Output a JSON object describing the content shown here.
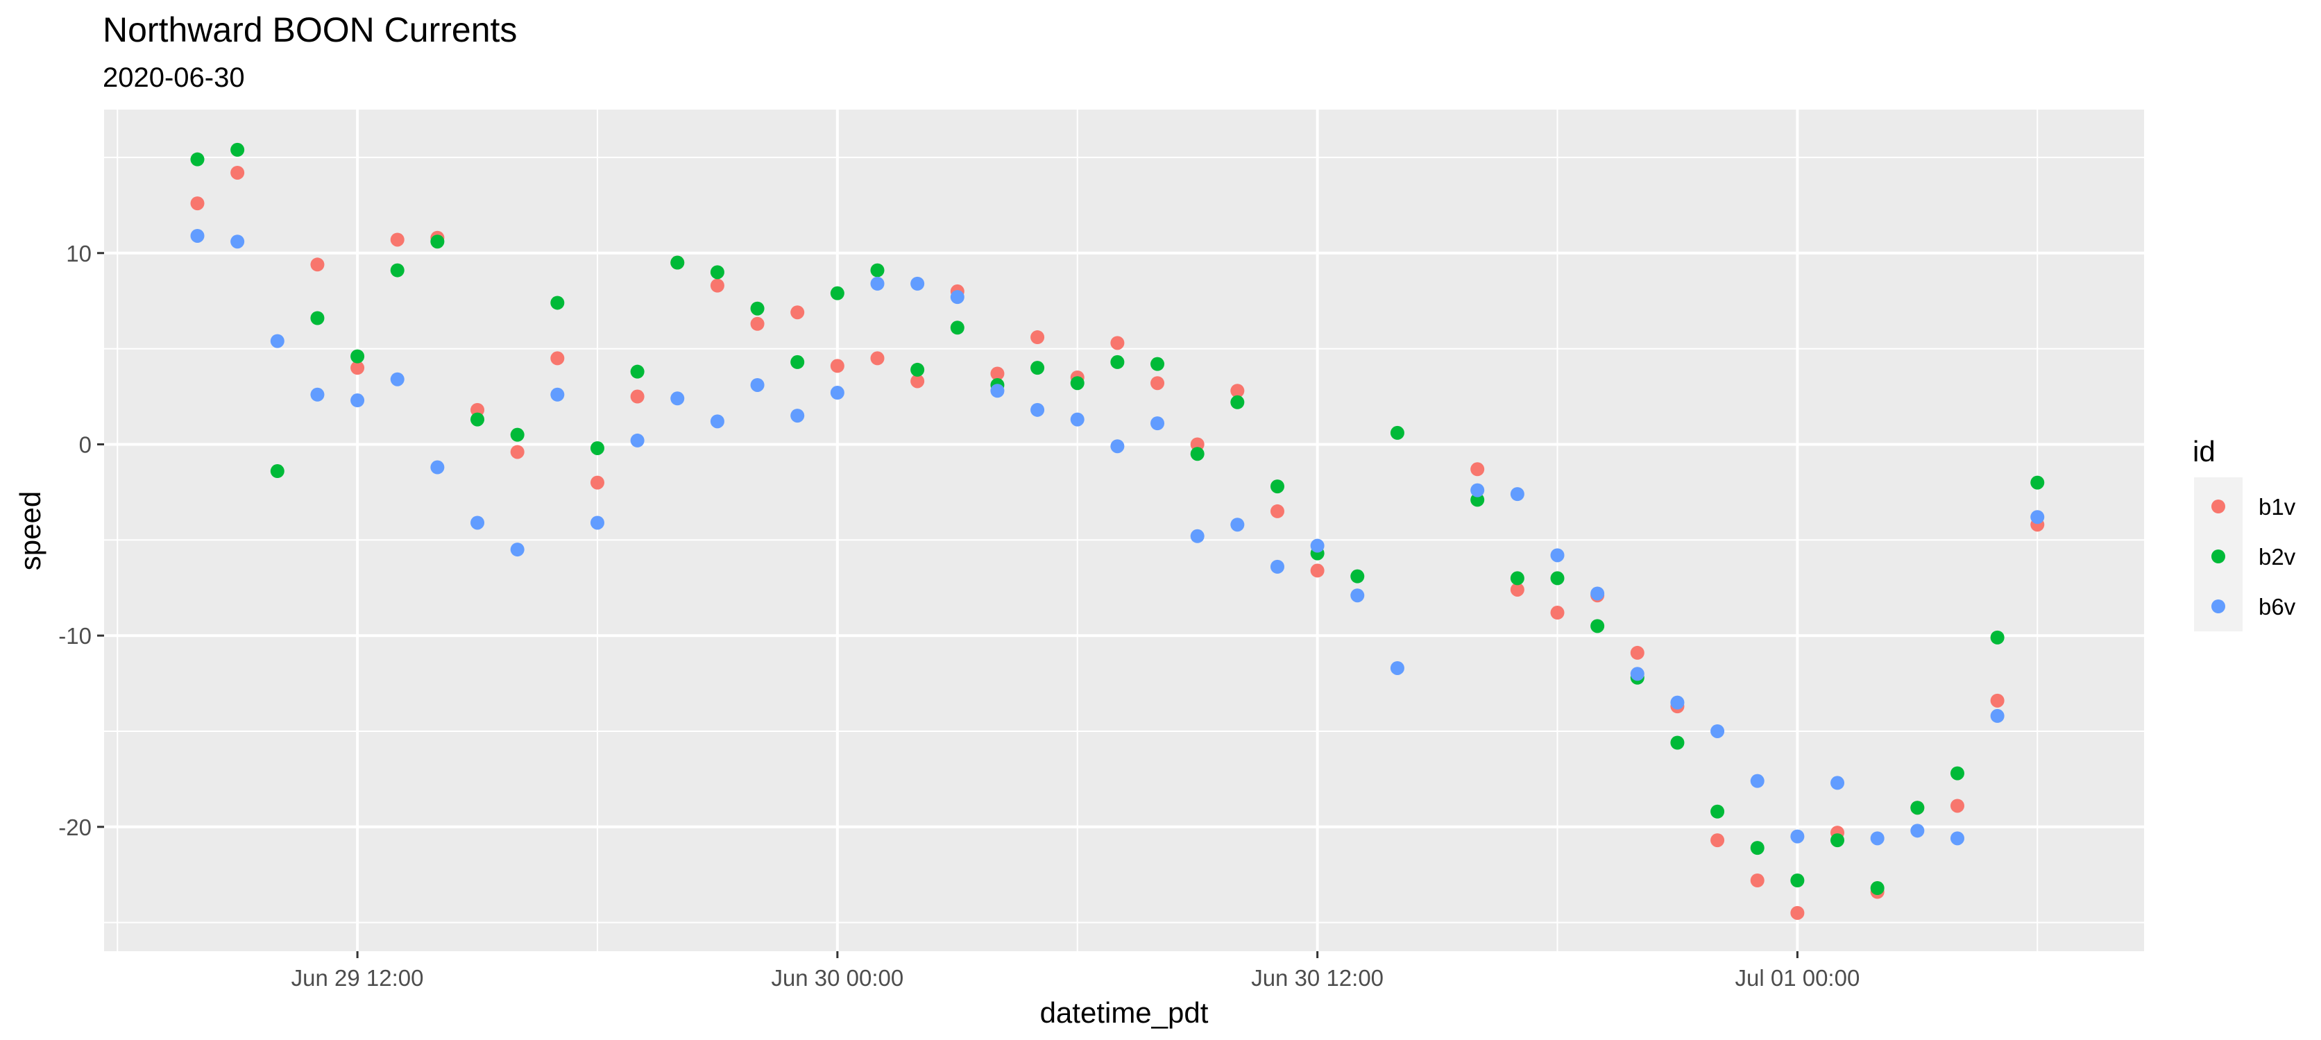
{
  "chart_data": {
    "type": "scatter",
    "title": "Northward BOON Currents",
    "subtitle": "2020-06-30",
    "xlabel": "datetime_pdt",
    "ylabel": "speed",
    "x_ticks": [
      "Jun 29 12:00",
      "Jun 30 00:00",
      "Jun 30 12:00",
      "Jul 01 00:00"
    ],
    "x_tick_times": [
      "2020-06-29 12:00",
      "2020-06-30 00:00",
      "2020-06-30 12:00",
      "2020-07-01 00:00"
    ],
    "y_ticks": [
      10,
      0,
      -10,
      -20
    ],
    "xlim": [
      "2020-06-29 05:40",
      "2020-07-01 08:40"
    ],
    "ylim": [
      -26.5,
      17.5
    ],
    "grid": true,
    "legend": {
      "title": "id",
      "position": "right"
    },
    "colors": {
      "b1v": "#F8766D",
      "b2v": "#00BA38",
      "b6v": "#619CFF"
    },
    "series": [
      {
        "name": "b1v",
        "points": [
          [
            "2020-06-29 08:00",
            12.6
          ],
          [
            "2020-06-29 09:00",
            14.2
          ],
          [
            "2020-06-29 11:00",
            9.4
          ],
          [
            "2020-06-29 12:00",
            4.0
          ],
          [
            "2020-06-29 13:00",
            10.7
          ],
          [
            "2020-06-29 14:00",
            10.8
          ],
          [
            "2020-06-29 15:00",
            1.8
          ],
          [
            "2020-06-29 16:00",
            -0.4
          ],
          [
            "2020-06-29 17:00",
            4.5
          ],
          [
            "2020-06-29 18:00",
            -2.0
          ],
          [
            "2020-06-29 19:00",
            2.5
          ],
          [
            "2020-06-29 20:00",
            9.5
          ],
          [
            "2020-06-29 21:00",
            8.3
          ],
          [
            "2020-06-29 22:00",
            6.3
          ],
          [
            "2020-06-29 23:00",
            6.9
          ],
          [
            "2020-06-30 00:00",
            4.1
          ],
          [
            "2020-06-30 01:00",
            4.5
          ],
          [
            "2020-06-30 02:00",
            3.3
          ],
          [
            "2020-06-30 03:00",
            8.0
          ],
          [
            "2020-06-30 04:00",
            3.7
          ],
          [
            "2020-06-30 05:00",
            5.6
          ],
          [
            "2020-06-30 06:00",
            3.5
          ],
          [
            "2020-06-30 07:00",
            5.3
          ],
          [
            "2020-06-30 08:00",
            3.2
          ],
          [
            "2020-06-30 09:00",
            0.0
          ],
          [
            "2020-06-30 10:00",
            2.8
          ],
          [
            "2020-06-30 11:00",
            -3.5
          ],
          [
            "2020-06-30 12:00",
            -6.6
          ],
          [
            "2020-06-30 16:00",
            -1.3
          ],
          [
            "2020-06-30 17:00",
            -7.6
          ],
          [
            "2020-06-30 18:00",
            -8.8
          ],
          [
            "2020-06-30 19:00",
            -7.9
          ],
          [
            "2020-06-30 20:00",
            -10.9
          ],
          [
            "2020-06-30 21:00",
            -13.7
          ],
          [
            "2020-06-30 22:00",
            -20.7
          ],
          [
            "2020-06-30 23:00",
            -22.8
          ],
          [
            "2020-07-01 00:00",
            -24.5
          ],
          [
            "2020-07-01 01:00",
            -20.3
          ],
          [
            "2020-07-01 02:00",
            -23.4
          ],
          [
            "2020-07-01 03:00",
            -19.0
          ],
          [
            "2020-07-01 04:00",
            -18.9
          ],
          [
            "2020-07-01 05:00",
            -13.4
          ],
          [
            "2020-07-01 06:00",
            -4.2
          ]
        ]
      },
      {
        "name": "b2v",
        "points": [
          [
            "2020-06-29 08:00",
            14.9
          ],
          [
            "2020-06-29 09:00",
            15.4
          ],
          [
            "2020-06-29 10:00",
            -1.4
          ],
          [
            "2020-06-29 11:00",
            6.6
          ],
          [
            "2020-06-29 12:00",
            4.6
          ],
          [
            "2020-06-29 13:00",
            9.1
          ],
          [
            "2020-06-29 14:00",
            10.6
          ],
          [
            "2020-06-29 15:00",
            1.3
          ],
          [
            "2020-06-29 16:00",
            0.5
          ],
          [
            "2020-06-29 17:00",
            7.4
          ],
          [
            "2020-06-29 18:00",
            -0.2
          ],
          [
            "2020-06-29 19:00",
            3.8
          ],
          [
            "2020-06-29 20:00",
            9.5
          ],
          [
            "2020-06-29 21:00",
            9.0
          ],
          [
            "2020-06-29 22:00",
            7.1
          ],
          [
            "2020-06-29 23:00",
            4.3
          ],
          [
            "2020-06-30 00:00",
            7.9
          ],
          [
            "2020-06-30 01:00",
            9.1
          ],
          [
            "2020-06-30 02:00",
            3.9
          ],
          [
            "2020-06-30 03:00",
            6.1
          ],
          [
            "2020-06-30 04:00",
            3.1
          ],
          [
            "2020-06-30 05:00",
            4.0
          ],
          [
            "2020-06-30 06:00",
            3.2
          ],
          [
            "2020-06-30 07:00",
            4.3
          ],
          [
            "2020-06-30 08:00",
            4.2
          ],
          [
            "2020-06-30 09:00",
            -0.5
          ],
          [
            "2020-06-30 10:00",
            2.2
          ],
          [
            "2020-06-30 11:00",
            -2.2
          ],
          [
            "2020-06-30 12:00",
            -5.7
          ],
          [
            "2020-06-30 13:00",
            -6.9
          ],
          [
            "2020-06-30 14:00",
            0.6
          ],
          [
            "2020-06-30 16:00",
            -2.9
          ],
          [
            "2020-06-30 17:00",
            -7.0
          ],
          [
            "2020-06-30 18:00",
            -7.0
          ],
          [
            "2020-06-30 19:00",
            -9.5
          ],
          [
            "2020-06-30 20:00",
            -12.2
          ],
          [
            "2020-06-30 21:00",
            -15.6
          ],
          [
            "2020-06-30 22:00",
            -19.2
          ],
          [
            "2020-06-30 23:00",
            -21.1
          ],
          [
            "2020-07-01 00:00",
            -22.8
          ],
          [
            "2020-07-01 01:00",
            -20.7
          ],
          [
            "2020-07-01 02:00",
            -23.2
          ],
          [
            "2020-07-01 03:00",
            -19.0
          ],
          [
            "2020-07-01 04:00",
            -17.2
          ],
          [
            "2020-07-01 05:00",
            -10.1
          ],
          [
            "2020-07-01 06:00",
            -2.0
          ]
        ]
      },
      {
        "name": "b6v",
        "points": [
          [
            "2020-06-29 08:00",
            10.9
          ],
          [
            "2020-06-29 09:00",
            10.6
          ],
          [
            "2020-06-29 10:00",
            5.4
          ],
          [
            "2020-06-29 11:00",
            2.6
          ],
          [
            "2020-06-29 12:00",
            2.3
          ],
          [
            "2020-06-29 13:00",
            3.4
          ],
          [
            "2020-06-29 14:00",
            -1.2
          ],
          [
            "2020-06-29 15:00",
            -4.1
          ],
          [
            "2020-06-29 16:00",
            -5.5
          ],
          [
            "2020-06-29 17:00",
            2.6
          ],
          [
            "2020-06-29 18:00",
            -4.1
          ],
          [
            "2020-06-29 19:00",
            0.2
          ],
          [
            "2020-06-29 20:00",
            2.4
          ],
          [
            "2020-06-29 21:00",
            1.2
          ],
          [
            "2020-06-29 22:00",
            3.1
          ],
          [
            "2020-06-29 23:00",
            1.5
          ],
          [
            "2020-06-30 00:00",
            2.7
          ],
          [
            "2020-06-30 01:00",
            8.4
          ],
          [
            "2020-06-30 02:00",
            8.4
          ],
          [
            "2020-06-30 03:00",
            7.7
          ],
          [
            "2020-06-30 04:00",
            2.8
          ],
          [
            "2020-06-30 05:00",
            1.8
          ],
          [
            "2020-06-30 06:00",
            1.3
          ],
          [
            "2020-06-30 07:00",
            -0.1
          ],
          [
            "2020-06-30 08:00",
            1.1
          ],
          [
            "2020-06-30 09:00",
            -4.8
          ],
          [
            "2020-06-30 10:00",
            -4.2
          ],
          [
            "2020-06-30 11:00",
            -6.4
          ],
          [
            "2020-06-30 12:00",
            -5.3
          ],
          [
            "2020-06-30 13:00",
            -7.9
          ],
          [
            "2020-06-30 14:00",
            -11.7
          ],
          [
            "2020-06-30 16:00",
            -2.4
          ],
          [
            "2020-06-30 17:00",
            -2.6
          ],
          [
            "2020-06-30 18:00",
            -5.8
          ],
          [
            "2020-06-30 19:00",
            -7.8
          ],
          [
            "2020-06-30 20:00",
            -12.0
          ],
          [
            "2020-06-30 21:00",
            -13.5
          ],
          [
            "2020-06-30 22:00",
            -15.0
          ],
          [
            "2020-06-30 23:00",
            -17.6
          ],
          [
            "2020-07-01 00:00",
            -20.5
          ],
          [
            "2020-07-01 01:00",
            -17.7
          ],
          [
            "2020-07-01 02:00",
            -20.6
          ],
          [
            "2020-07-01 03:00",
            -20.2
          ],
          [
            "2020-07-01 04:00",
            -20.6
          ],
          [
            "2020-07-01 05:00",
            -14.2
          ],
          [
            "2020-07-01 06:00",
            -3.8
          ]
        ]
      }
    ]
  }
}
